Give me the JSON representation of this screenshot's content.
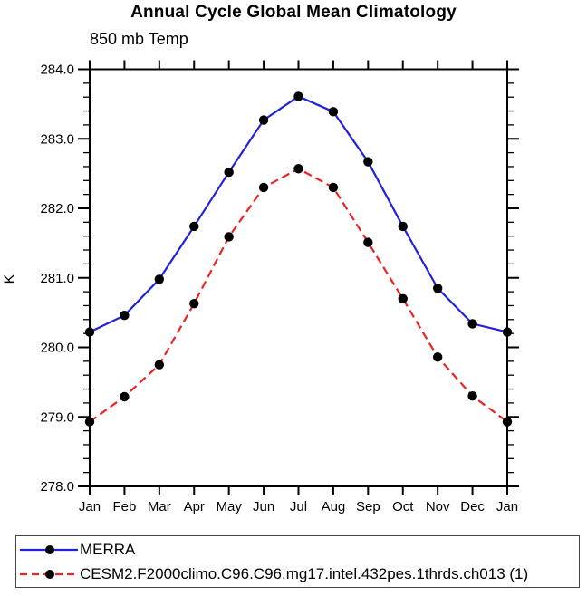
{
  "title": "Annual Cycle Global Mean Climatology",
  "subtitle": "850 mb Temp",
  "chart_data": {
    "type": "line",
    "title": "Annual Cycle Global Mean Climatology",
    "subtitle": "850 mb Temp",
    "xlabel": "",
    "ylabel": "K",
    "categories": [
      "Jan",
      "Feb",
      "Mar",
      "Apr",
      "May",
      "Jun",
      "Jul",
      "Aug",
      "Sep",
      "Oct",
      "Nov",
      "Dec",
      "Jan"
    ],
    "ylim": [
      278.0,
      284.0
    ],
    "ytick_major_interval": 1.0,
    "ytick_minor_interval": 0.2,
    "ytick_labels": [
      "278.0",
      "279.0",
      "280.0",
      "281.0",
      "282.0",
      "283.0",
      "284.0"
    ],
    "grid": false,
    "frame_color": "#000000",
    "legend_position": "bottom-box",
    "series": [
      {
        "name": "MERRA",
        "line_style": "solid",
        "color": "#2222dd",
        "marker": "circle",
        "marker_color": "#000000",
        "values": [
          280.22,
          280.46,
          280.98,
          281.74,
          282.52,
          283.27,
          283.61,
          283.39,
          282.67,
          281.74,
          280.85,
          280.34,
          280.22
        ]
      },
      {
        "name": "CESM2.F2000climo.C96.C96.mg17.intel.432pes.1thrds.ch013 (1)",
        "line_style": "dashed",
        "color": "#ee2222",
        "marker": "circle",
        "marker_color": "#000000",
        "values": [
          278.93,
          279.29,
          279.75,
          280.63,
          281.59,
          282.3,
          282.57,
          282.3,
          281.51,
          280.7,
          279.86,
          279.3,
          278.93
        ]
      }
    ]
  }
}
